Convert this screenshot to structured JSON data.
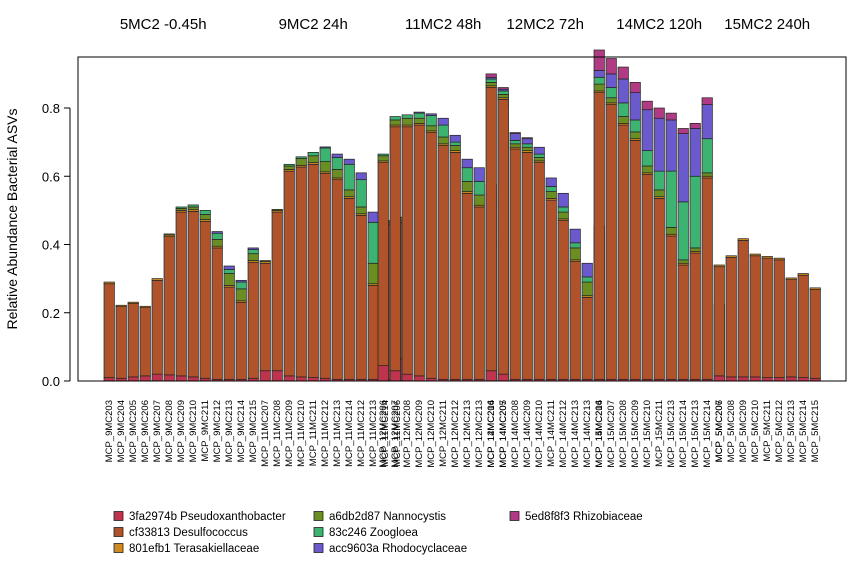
{
  "chart_data": {
    "type": "bar",
    "stacked": true,
    "ylabel": "Relative Abundance Bacterial ASVs",
    "ylim": [
      0,
      0.95
    ],
    "yticks": [
      "0.0",
      "0.2",
      "0.4",
      "0.6",
      "0.8"
    ],
    "grid": false,
    "legend_position": "bottom",
    "taxa": [
      {
        "name": "3fa2974b Pseudoxanthobacter",
        "color": "#c0334d"
      },
      {
        "name": "cf33813 Desulfococcus",
        "color": "#b0522a"
      },
      {
        "name": "801efb1 Terasakiellaceae",
        "color": "#d08a1f"
      },
      {
        "name": "a6db2d87 Nannocystis",
        "color": "#6b8e23"
      },
      {
        "name": "83c246 Zoogloea",
        "color": "#3cb371"
      },
      {
        "name": "acc9603a Rhodocyclaceae",
        "color": "#6a5acd"
      },
      {
        "name": "5ed8f8f3 Rhizobiaceae",
        "color": "#b03a84"
      }
    ],
    "panels": [
      {
        "title": "5MC2 -0.45h",
        "samples": [
          {
            "label": "MCP_9MC203",
            "values": [
              0.01,
              0.275,
              0.005,
              0,
              0,
              0,
              0
            ]
          },
          {
            "label": "MCP_9MC204",
            "values": [
              0.008,
              0.21,
              0.004,
              0,
              0,
              0,
              0
            ]
          },
          {
            "label": "MCP_9MC205",
            "values": [
              0.012,
              0.215,
              0.004,
              0,
              0,
              0,
              0
            ]
          },
          {
            "label": "MCP_9MC206",
            "values": [
              0.015,
              0.2,
              0.004,
              0,
              0,
              0,
              0
            ]
          },
          {
            "label": "MCP_9MC207",
            "values": [
              0.02,
              0.275,
              0.005,
              0,
              0,
              0,
              0
            ]
          },
          {
            "label": "MCP_9MC208",
            "values": [
              0.018,
              0.405,
              0.005,
              0.003,
              0,
              0,
              0
            ]
          },
          {
            "label": "MCP_9MC209",
            "values": [
              0.015,
              0.48,
              0.005,
              0.006,
              0.004,
              0,
              0
            ]
          },
          {
            "label": "MCP_9MC210",
            "values": [
              0.012,
              0.485,
              0.005,
              0.008,
              0.006,
              0,
              0
            ]
          },
          {
            "label": "MCP_9MC211",
            "values": [
              0.008,
              0.46,
              0.005,
              0.015,
              0.012,
              0,
              0
            ]
          },
          {
            "label": "MCP_9MC212",
            "values": [
              0.005,
              0.385,
              0.005,
              0.02,
              0.018,
              0.005,
              0
            ]
          }
        ]
      },
      {
        "title": "9MC2 24h",
        "samples": [
          {
            "label": "MCP_9MC213",
            "values": [
              0.005,
              0.27,
              0.005,
              0.035,
              0.012,
              0.01,
              0
            ]
          },
          {
            "label": "MCP_9MC214",
            "values": [
              0.005,
              0.225,
              0.005,
              0.035,
              0.02,
              0.005,
              0
            ]
          },
          {
            "label": "MCP_9MC215",
            "values": [
              0.008,
              0.34,
              0.005,
              0.02,
              0.012,
              0.005,
              0
            ]
          },
          {
            "label": "MCP_11MC207",
            "values": [
              0.03,
              0.315,
              0.005,
              0.003,
              0,
              0,
              0
            ]
          },
          {
            "label": "MCP_11MC208",
            "values": [
              0.03,
              0.465,
              0.005,
              0.003,
              0,
              0,
              0
            ]
          },
          {
            "label": "MCP_11MC209",
            "values": [
              0.015,
              0.6,
              0.005,
              0.01,
              0.005,
              0,
              0
            ]
          },
          {
            "label": "MCP_11MC210",
            "values": [
              0.012,
              0.615,
              0.005,
              0.02,
              0.005,
              0,
              0
            ]
          },
          {
            "label": "MCP_11MC211",
            "values": [
              0.01,
              0.625,
              0.005,
              0.02,
              0.01,
              0,
              0
            ]
          },
          {
            "label": "MCP_11MC212",
            "values": [
              0.008,
              0.6,
              0.005,
              0.03,
              0.04,
              0.003,
              0
            ]
          },
          {
            "label": "MCP_11MC213",
            "values": [
              0.005,
              0.585,
              0.005,
              0.025,
              0.035,
              0.01,
              0
            ]
          },
          {
            "label": "MCP_11MC214",
            "values": [
              0.005,
              0.53,
              0.005,
              0.02,
              0.075,
              0.015,
              0
            ]
          },
          {
            "label": "MCP_11MC212",
            "values": [
              0.005,
              0.48,
              0.005,
              0.02,
              0.08,
              0.02,
              0
            ]
          },
          {
            "label": "MCP_11MC213",
            "values": [
              0.005,
              0.275,
              0.005,
              0.06,
              0.12,
              0.03,
              0
            ]
          },
          {
            "label": "MCP_11MC214",
            "values": [
              0.005,
              0.455,
              0.005,
              0.005,
              0,
              0,
              0
            ]
          },
          {
            "label": "MCP_11MC206",
            "values": [
              0.065,
              0.4,
              0.005,
              0.01,
              0,
              0,
              0
            ]
          }
        ]
      },
      {
        "title": "11MC2 48h",
        "samples": [
          {
            "label": "MCP_12MC206",
            "values": [
              0.045,
              0.595,
              0.005,
              0.015,
              0.005,
              0,
              0
            ]
          },
          {
            "label": "MCP_12MC207",
            "values": [
              0.03,
              0.715,
              0.005,
              0.015,
              0.01,
              0,
              0
            ]
          },
          {
            "label": "MCP_12MC208",
            "values": [
              0.02,
              0.725,
              0.005,
              0.02,
              0.01,
              0,
              0
            ]
          },
          {
            "label": "MCP_12MC209",
            "values": [
              0.015,
              0.735,
              0.005,
              0.015,
              0.015,
              0.003,
              0
            ]
          },
          {
            "label": "MCP_12MC210",
            "values": [
              0.008,
              0.72,
              0.005,
              0.015,
              0.03,
              0.005,
              0
            ]
          },
          {
            "label": "MCP_12MC211",
            "values": [
              0.005,
              0.685,
              0.005,
              0.02,
              0.035,
              0.02,
              0
            ]
          },
          {
            "label": "MCP_12MC212",
            "values": [
              0.005,
              0.665,
              0.005,
              0.015,
              0.01,
              0.02,
              0
            ]
          },
          {
            "label": "MCP_12MC213",
            "values": [
              0.005,
              0.545,
              0.005,
              0.03,
              0.04,
              0.025,
              0
            ]
          },
          {
            "label": "MCP_12MC213",
            "values": [
              0.005,
              0.505,
              0.005,
              0.03,
              0.04,
              0.04,
              0
            ]
          },
          {
            "label": "MCP_12MC214",
            "values": [
              0.005,
              0.39,
              0.005,
              0.06,
              0.07,
              0.045,
              0
            ]
          },
          {
            "label": "MCP_14MC205",
            "values": [
              0.045,
              0.76,
              0.005,
              0.01,
              0.005,
              0.01,
              0.005
            ]
          }
        ]
      },
      {
        "title": "12MC2 72h",
        "samples": [
          {
            "label": "MCP_14MC206",
            "values": [
              0.03,
              0.83,
              0.005,
              0.01,
              0.01,
              0.005,
              0.01
            ]
          },
          {
            "label": "MCP_14MC207",
            "values": [
              0.02,
              0.805,
              0.005,
              0.01,
              0.01,
              0.005,
              0.005
            ]
          },
          {
            "label": "MCP_14MC208",
            "values": [
              0.005,
              0.675,
              0.005,
              0.01,
              0.01,
              0.02,
              0.003
            ]
          },
          {
            "label": "MCP_14MC209",
            "values": [
              0.005,
              0.665,
              0.005,
              0.01,
              0.01,
              0.015,
              0.003
            ]
          },
          {
            "label": "MCP_14MC210",
            "values": [
              0.005,
              0.635,
              0.005,
              0.01,
              0.01,
              0.02,
              0
            ]
          },
          {
            "label": "MCP_14MC211",
            "values": [
              0.005,
              0.525,
              0.005,
              0.02,
              0.015,
              0.025,
              0
            ]
          },
          {
            "label": "MCP_14MC212",
            "values": [
              0.005,
              0.465,
              0.005,
              0.02,
              0.015,
              0.04,
              0
            ]
          },
          {
            "label": "MCP_14MC213",
            "values": [
              0.005,
              0.345,
              0.005,
              0.035,
              0.015,
              0.04,
              0
            ]
          },
          {
            "label": "MCP_14MC213",
            "values": [
              0.005,
              0.24,
              0.005,
              0.04,
              0.015,
              0.04,
              0
            ]
          },
          {
            "label": "MCP_14MC214",
            "values": [
              0.005,
              0.365,
              0.005,
              0.035,
              0.005,
              0.04,
              0
            ]
          }
        ]
      },
      {
        "title": "14MC2 120h",
        "samples": [
          {
            "label": "MCP_15MC206",
            "values": [
              0.005,
              0.84,
              0.005,
              0.02,
              0.02,
              0.02,
              0.06
            ]
          },
          {
            "label": "MCP_15MC207",
            "values": [
              0.005,
              0.805,
              0.005,
              0.015,
              0.03,
              0.04,
              0.045
            ]
          },
          {
            "label": "MCP_15MC208",
            "values": [
              0.005,
              0.745,
              0.005,
              0.02,
              0.04,
              0.07,
              0.035
            ]
          },
          {
            "label": "MCP_15MC209",
            "values": [
              0.005,
              0.7,
              0.005,
              0.02,
              0.035,
              0.08,
              0.03
            ]
          },
          {
            "label": "MCP_15MC210",
            "values": [
              0.005,
              0.6,
              0.005,
              0.02,
              0.045,
              0.12,
              0.025
            ]
          },
          {
            "label": "MCP_15MC211",
            "values": [
              0.005,
              0.53,
              0.005,
              0.02,
              0.055,
              0.155,
              0.03
            ]
          },
          {
            "label": "MCP_15MC213",
            "values": [
              0.005,
              0.42,
              0.005,
              0.02,
              0.165,
              0.15,
              0.02
            ]
          },
          {
            "label": "MCP_15MC214",
            "values": [
              0.005,
              0.335,
              0.005,
              0.01,
              0.17,
              0.2,
              0.015
            ]
          },
          {
            "label": "MCP_15MC213",
            "values": [
              0.005,
              0.37,
              0.005,
              0.01,
              0.21,
              0.14,
              0.015
            ]
          },
          {
            "label": "MCP_15MC214",
            "values": [
              0.005,
              0.59,
              0.005,
              0.01,
              0.1,
              0.1,
              0.02
            ]
          },
          {
            "label": "MCP_5MC206",
            "values": [
              0.005,
              0.215,
              0.005,
              0,
              0,
              0,
              0
            ]
          }
        ]
      },
      {
        "title": "15MC2 240h",
        "samples": [
          {
            "label": "MCP_5MC207",
            "values": [
              0.015,
              0.32,
              0.005,
              0,
              0,
              0,
              0
            ]
          },
          {
            "label": "MCP_5MC208",
            "values": [
              0.012,
              0.35,
              0.005,
              0,
              0,
              0,
              0
            ]
          },
          {
            "label": "MCP_5MC209",
            "values": [
              0.012,
              0.4,
              0.005,
              0,
              0,
              0,
              0
            ]
          },
          {
            "label": "MCP_5MC210",
            "values": [
              0.012,
              0.355,
              0.005,
              0,
              0,
              0,
              0
            ]
          },
          {
            "label": "MCP_5MC211",
            "values": [
              0.01,
              0.35,
              0.005,
              0,
              0,
              0,
              0
            ]
          },
          {
            "label": "MCP_5MC212",
            "values": [
              0.01,
              0.345,
              0.005,
              0,
              0,
              0,
              0
            ]
          },
          {
            "label": "MCP_5MC213",
            "values": [
              0.012,
              0.285,
              0.005,
              0,
              0,
              0,
              0
            ]
          },
          {
            "label": "MCP_5MC214",
            "values": [
              0.01,
              0.3,
              0.005,
              0,
              0,
              0,
              0
            ]
          },
          {
            "label": "MCP_5MC215",
            "values": [
              0.008,
              0.26,
              0.005,
              0,
              0,
              0,
              0
            ]
          }
        ]
      }
    ]
  }
}
